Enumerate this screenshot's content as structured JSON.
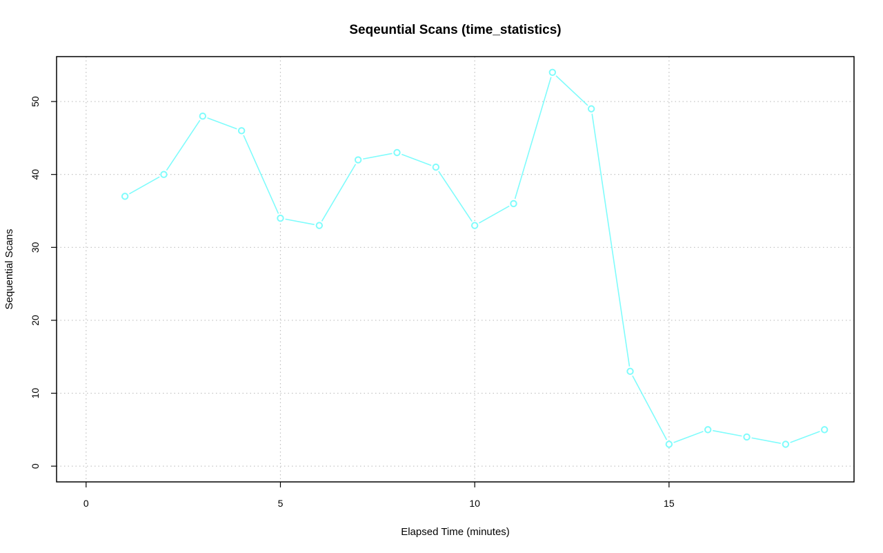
{
  "chart_data": {
    "type": "line",
    "title": "Seqeuntial Scans (time_statistics)",
    "xlabel": "Elapsed Time (minutes)",
    "ylabel": "Sequential Scans",
    "xlim": [
      -0.76,
      19.76
    ],
    "ylim": [
      -2.16,
      56.16
    ],
    "xticks": [
      0,
      5,
      10,
      15
    ],
    "yticks": [
      0,
      10,
      20,
      30,
      40,
      50
    ],
    "grid": true,
    "series": [
      {
        "color": "#7ffcfc",
        "x": [
          1,
          2,
          3,
          4,
          5,
          6,
          7,
          8,
          9,
          10,
          11,
          12,
          13,
          14,
          15,
          16,
          17,
          18,
          19
        ],
        "y": [
          37,
          40,
          48,
          46,
          34,
          33,
          42,
          43,
          41,
          33,
          36,
          54,
          49,
          13,
          3,
          5,
          4,
          3,
          5
        ]
      }
    ]
  }
}
